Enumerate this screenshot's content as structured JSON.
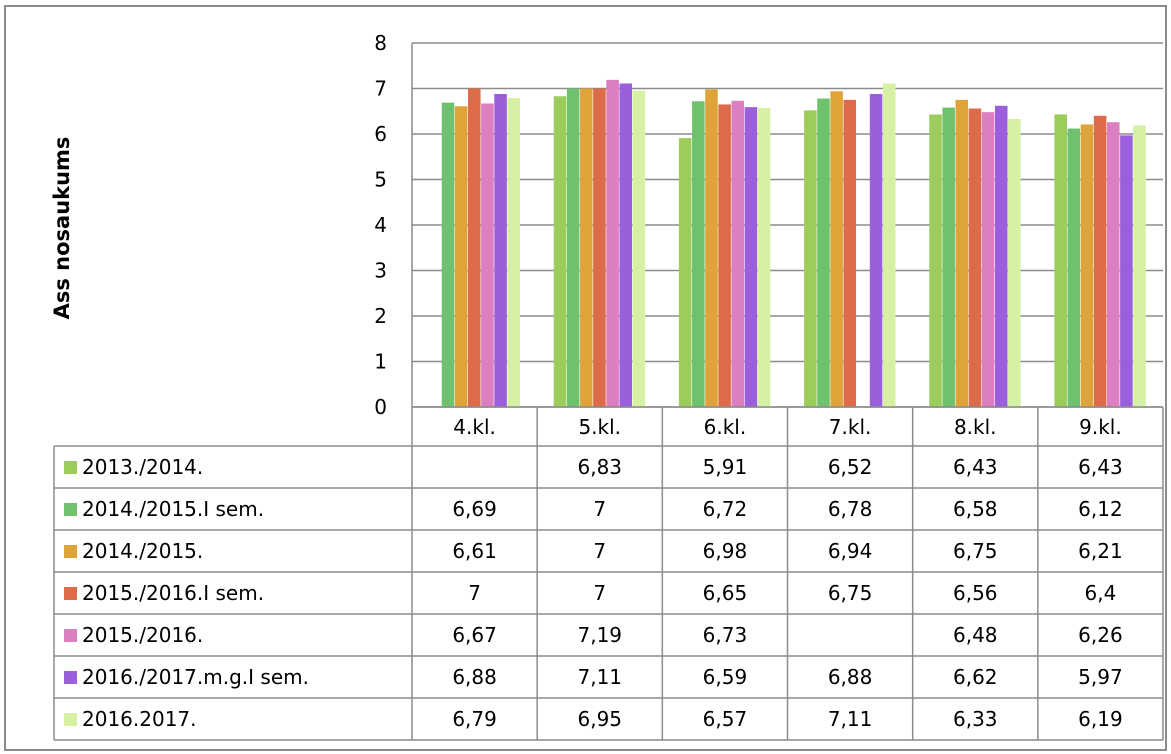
{
  "chart_data": {
    "type": "bar",
    "ylabel": "Ass nosaukums",
    "ylim": [
      0,
      8
    ],
    "ytick_step": 1,
    "grid": true,
    "legend": "data table below chart",
    "categories": [
      "4.kl.",
      "5.kl.",
      "6.kl.",
      "7.kl.",
      "8.kl.",
      "9.kl."
    ],
    "series": [
      {
        "name": "2013./2014.",
        "color": "#9bcc5c",
        "values": [
          null,
          6.83,
          5.91,
          6.52,
          6.43,
          6.43
        ],
        "labels": [
          "",
          "6,83",
          "5,91",
          "6,52",
          "6,43",
          "6,43"
        ]
      },
      {
        "name": "2014./2015.I sem.",
        "color": "#6ec26e",
        "values": [
          6.69,
          7,
          6.72,
          6.78,
          6.58,
          6.12
        ],
        "labels": [
          "6,69",
          "7",
          "6,72",
          "6,78",
          "6,58",
          "6,12"
        ]
      },
      {
        "name": "2014./2015.",
        "color": "#dea43a",
        "values": [
          6.61,
          7,
          6.98,
          6.94,
          6.75,
          6.21
        ],
        "labels": [
          "6,61",
          "7",
          "6,98",
          "6,94",
          "6,75",
          "6,21"
        ]
      },
      {
        "name": "2015./2016.I sem.",
        "color": "#dd6a48",
        "values": [
          7,
          7,
          6.65,
          6.75,
          6.56,
          6.4
        ],
        "labels": [
          "7",
          "7",
          "6,65",
          "6,75",
          "6,56",
          "6,4"
        ]
      },
      {
        "name": "2015./2016.",
        "color": "#dc7fc0",
        "values": [
          6.67,
          7.19,
          6.73,
          null,
          6.48,
          6.26
        ],
        "labels": [
          "6,67",
          "7,19",
          "6,73",
          "",
          "6,48",
          "6,26"
        ]
      },
      {
        "name": "2016./2017.m.g.I sem.",
        "color": "#9b5fdc",
        "values": [
          6.88,
          7.11,
          6.59,
          6.88,
          6.62,
          5.97
        ],
        "labels": [
          "6,88",
          "7,11",
          "6,59",
          "6,88",
          "6,62",
          "5,97"
        ]
      },
      {
        "name": "2016.2017.",
        "color": "#d6f0a4",
        "values": [
          6.79,
          6.95,
          6.57,
          7.11,
          6.33,
          6.19
        ],
        "labels": [
          "6,79",
          "6,95",
          "6,57",
          "7,11",
          "6,33",
          "6,19"
        ]
      }
    ]
  }
}
